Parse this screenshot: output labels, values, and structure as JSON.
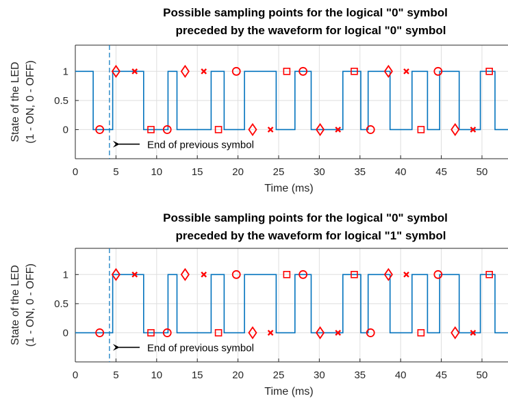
{
  "colors": {
    "signal": "#0072BD",
    "marker": "#FF0000",
    "grid": "#DEDEDE",
    "axis": "#262626"
  },
  "chart_data": [
    {
      "type": "line",
      "title": [
        "Possible sampling points for the logical \"0\" symbol",
        "preceded by the waveform for logical \"0\" symbol"
      ],
      "xlabel": "Time (ms)",
      "ylabel": [
        "State of the LED",
        "(1 - ON, 0 - OFF)"
      ],
      "xlim": [
        0,
        53.2
      ],
      "ylim": [
        -0.5,
        1.45
      ],
      "xticks": [
        "0",
        "5",
        "10",
        "15",
        "20",
        "25",
        "30",
        "35",
        "40",
        "45",
        "50"
      ],
      "yticks": [
        "0",
        "0.5",
        "1"
      ],
      "grid": true,
      "waveform": {
        "x": [
          0,
          2.2,
          2.2,
          4.6,
          4.6,
          8.4,
          8.4,
          11.4,
          11.4,
          12.5,
          12.5,
          16.7,
          16.7,
          18.3,
          18.3,
          20.8,
          20.8,
          24.7,
          24.7,
          27.0,
          27.0,
          29.0,
          29.0,
          32.9,
          32.9,
          35.1,
          35.1,
          36.0,
          36.0,
          38.7,
          38.7,
          41.4,
          41.4,
          43.3,
          43.3,
          44.8,
          44.8,
          47.2,
          47.2,
          49.8,
          49.8,
          51.6,
          51.6,
          53.2
        ],
        "y": [
          1,
          1,
          0,
          0,
          1,
          1,
          0,
          0,
          1,
          1,
          0,
          0,
          1,
          1,
          0,
          0,
          1,
          1,
          0,
          0,
          1,
          1,
          0,
          0,
          1,
          1,
          0,
          0,
          1,
          1,
          0,
          0,
          1,
          1,
          0,
          0,
          1,
          1,
          0,
          0,
          1,
          1,
          0,
          0
        ]
      },
      "markers": {
        "circle": [
          [
            3.0,
            0
          ],
          [
            11.3,
            0
          ],
          [
            19.8,
            1
          ],
          [
            28.0,
            1
          ],
          [
            36.3,
            0
          ],
          [
            44.6,
            1
          ]
        ],
        "diamond": [
          [
            5.0,
            1
          ],
          [
            13.5,
            1
          ],
          [
            21.8,
            0
          ],
          [
            30.1,
            0
          ],
          [
            38.5,
            1
          ],
          [
            46.7,
            0
          ]
        ],
        "cross": [
          [
            7.3,
            1
          ],
          [
            15.8,
            1
          ],
          [
            24.0,
            0
          ],
          [
            32.3,
            0
          ],
          [
            40.7,
            1
          ],
          [
            48.9,
            0
          ]
        ],
        "square": [
          [
            9.3,
            0
          ],
          [
            17.6,
            0
          ],
          [
            26.0,
            1
          ],
          [
            34.3,
            1
          ],
          [
            42.5,
            0
          ],
          [
            50.9,
            1
          ]
        ]
      },
      "boundary_x": 4.2,
      "annotation": {
        "text": "End of previous symbol",
        "x": 4.2,
        "y": -0.25
      }
    },
    {
      "type": "line",
      "title": [
        "Possible sampling points for the logical \"0\" symbol",
        "preceded by the waveform for logical \"1\" symbol"
      ],
      "xlabel": "Time (ms)",
      "ylabel": [
        "State of the LED",
        "(1 - ON, 0 - OFF)"
      ],
      "xlim": [
        0,
        53.2
      ],
      "ylim": [
        -0.5,
        1.45
      ],
      "xticks": [
        "0",
        "5",
        "10",
        "15",
        "20",
        "25",
        "30",
        "35",
        "40",
        "45",
        "50"
      ],
      "yticks": [
        "0",
        "0.5",
        "1"
      ],
      "grid": true,
      "waveform": {
        "x": [
          0,
          4.6,
          4.6,
          8.4,
          8.4,
          11.4,
          11.4,
          12.5,
          12.5,
          16.7,
          16.7,
          18.3,
          18.3,
          20.8,
          20.8,
          24.7,
          24.7,
          27.0,
          27.0,
          29.0,
          29.0,
          32.9,
          32.9,
          35.1,
          35.1,
          36.0,
          36.0,
          38.7,
          38.7,
          41.4,
          41.4,
          43.3,
          43.3,
          44.8,
          44.8,
          47.2,
          47.2,
          49.8,
          49.8,
          51.6,
          51.6,
          53.2
        ],
        "y": [
          0,
          0,
          1,
          1,
          0,
          0,
          1,
          1,
          0,
          0,
          1,
          1,
          0,
          0,
          1,
          1,
          0,
          0,
          1,
          1,
          0,
          0,
          1,
          1,
          0,
          0,
          1,
          1,
          0,
          0,
          1,
          1,
          0,
          0,
          1,
          1,
          0,
          0,
          1,
          1,
          0,
          0
        ]
      },
      "markers": {
        "circle": [
          [
            3.0,
            0
          ],
          [
            11.3,
            0
          ],
          [
            19.8,
            1
          ],
          [
            28.0,
            1
          ],
          [
            36.3,
            0
          ],
          [
            44.6,
            1
          ]
        ],
        "diamond": [
          [
            5.0,
            1
          ],
          [
            13.5,
            1
          ],
          [
            21.8,
            0
          ],
          [
            30.1,
            0
          ],
          [
            38.5,
            1
          ],
          [
            46.7,
            0
          ]
        ],
        "cross": [
          [
            7.3,
            1
          ],
          [
            15.8,
            1
          ],
          [
            24.0,
            0
          ],
          [
            32.3,
            0
          ],
          [
            40.7,
            1
          ],
          [
            48.9,
            0
          ]
        ],
        "square": [
          [
            9.3,
            0
          ],
          [
            17.6,
            0
          ],
          [
            26.0,
            1
          ],
          [
            34.3,
            1
          ],
          [
            42.5,
            0
          ],
          [
            50.9,
            1
          ]
        ]
      },
      "boundary_x": 4.2,
      "annotation": {
        "text": "End of previous symbol",
        "x": 4.2,
        "y": -0.25
      }
    }
  ]
}
